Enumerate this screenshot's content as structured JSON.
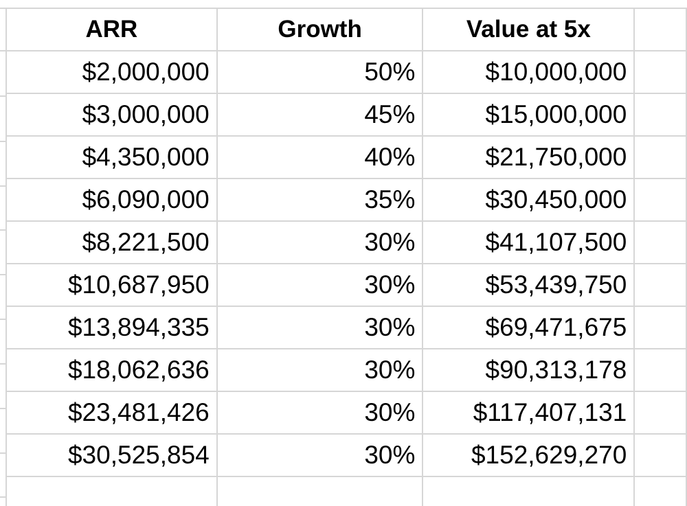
{
  "sheet": {
    "headers": [
      "ARR",
      "Growth",
      "Value at 5x"
    ],
    "rows": [
      [
        "$2,000,000",
        "50%",
        "$10,000,000"
      ],
      [
        "$3,000,000",
        "45%",
        "$15,000,000"
      ],
      [
        "$4,350,000",
        "40%",
        "$21,750,000"
      ],
      [
        "$6,090,000",
        "35%",
        "$30,450,000"
      ],
      [
        "$8,221,500",
        "30%",
        "$41,107,500"
      ],
      [
        "$10,687,950",
        "30%",
        "$53,439,750"
      ],
      [
        "$13,894,335",
        "30%",
        "$69,471,675"
      ],
      [
        "$18,062,636",
        "30%",
        "$90,313,178"
      ],
      [
        "$23,481,426",
        "30%",
        "$117,407,131"
      ],
      [
        "$30,525,854",
        "30%",
        "$152,629,270"
      ]
    ]
  },
  "colors": {
    "gridline": "#d6d6d6",
    "text": "#000000",
    "background": "#ffffff"
  }
}
